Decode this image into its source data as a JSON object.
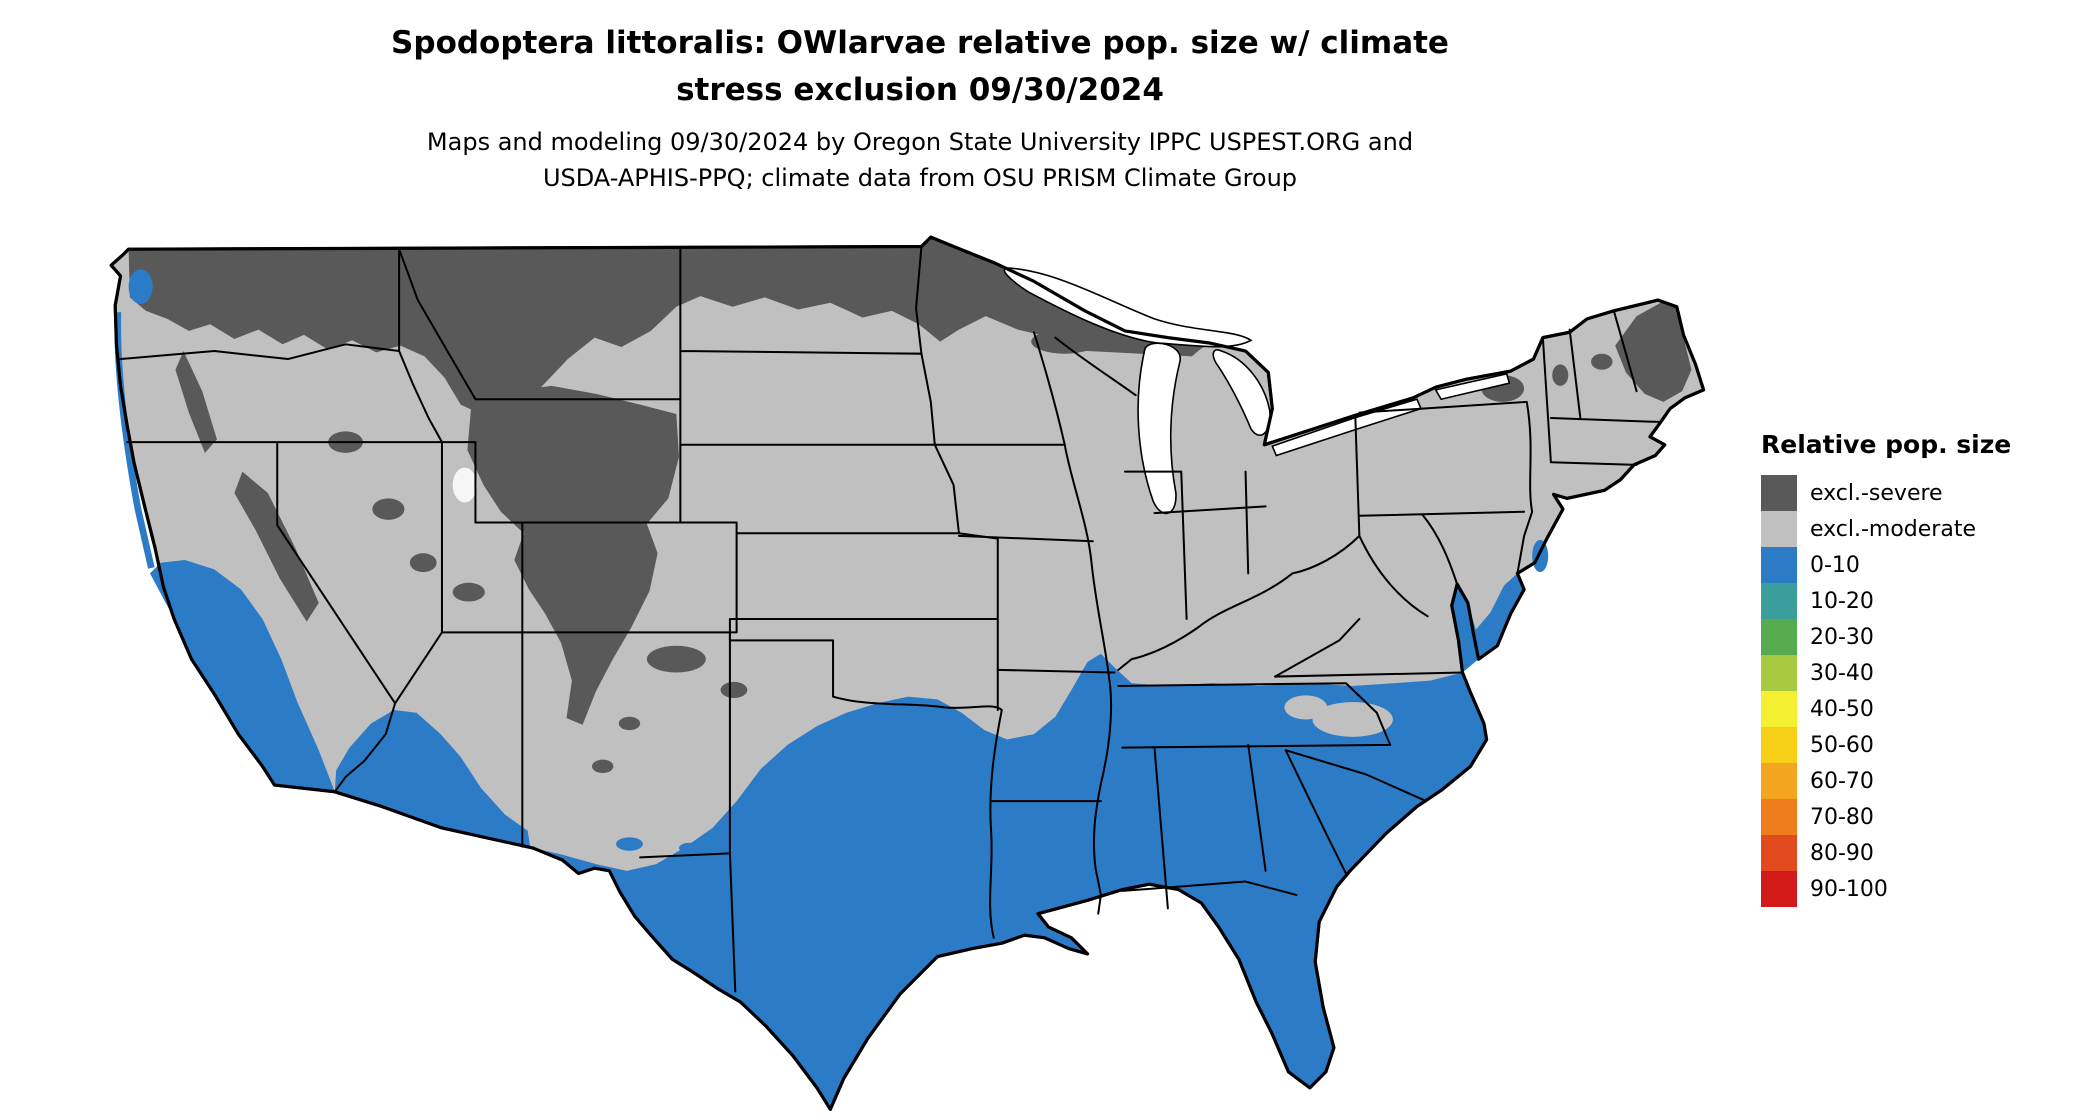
{
  "title": {
    "line1": "Spodoptera littoralis: OWlarvae relative pop. size w/ climate",
    "line2": "stress exclusion 09/30/2024"
  },
  "subtitle": {
    "line1": "Maps and modeling 09/30/2024 by Oregon State University IPPC USPEST.ORG and",
    "line2": "USDA-APHIS-PPQ; climate data from OSU PRISM Climate Group"
  },
  "legend": {
    "title": "Relative pop. size",
    "items": [
      {
        "label": "excl.-severe",
        "color": "#595959"
      },
      {
        "label": "excl.-moderate",
        "color": "#c0c0c0"
      },
      {
        "label": "0-10",
        "color": "#2b7bc7"
      },
      {
        "label": "10-20",
        "color": "#3a9e9c"
      },
      {
        "label": "20-30",
        "color": "#57ab4f"
      },
      {
        "label": "30-40",
        "color": "#a6c93f"
      },
      {
        "label": "40-50",
        "color": "#f4ef31"
      },
      {
        "label": "50-60",
        "color": "#f7cf17"
      },
      {
        "label": "60-70",
        "color": "#f4a41f"
      },
      {
        "label": "70-80",
        "color": "#ee7d1e"
      },
      {
        "label": "80-90",
        "color": "#e2491d"
      },
      {
        "label": "90-100",
        "color": "#d21a1a"
      }
    ]
  },
  "map": {
    "type": "choropleth raster map",
    "region": "Contiguous United States with state boundaries",
    "classes_visible_on_map": [
      "excl.-severe",
      "excl.-moderate",
      "0-10"
    ],
    "distribution": {
      "excl.-severe": "northern border states (Montana, North Dakota, Minnesota), northern Rockies and Wyoming/Colorado mountains, Sierra Nevada, Great Basin peaks, upper Great Lakes, Adirondacks and Maine",
      "excl.-moderate": "central latitudes, interior West, Midwest, Ohio Valley and mid-Atlantic",
      "0-10": "southern tier: coastal and southern California, southern Arizona, southern New Mexico edge, most of Texas, Gulf Coast states, Florida, Tennessee, the Carolinas and coastal Virginia/Delmarva"
    }
  }
}
